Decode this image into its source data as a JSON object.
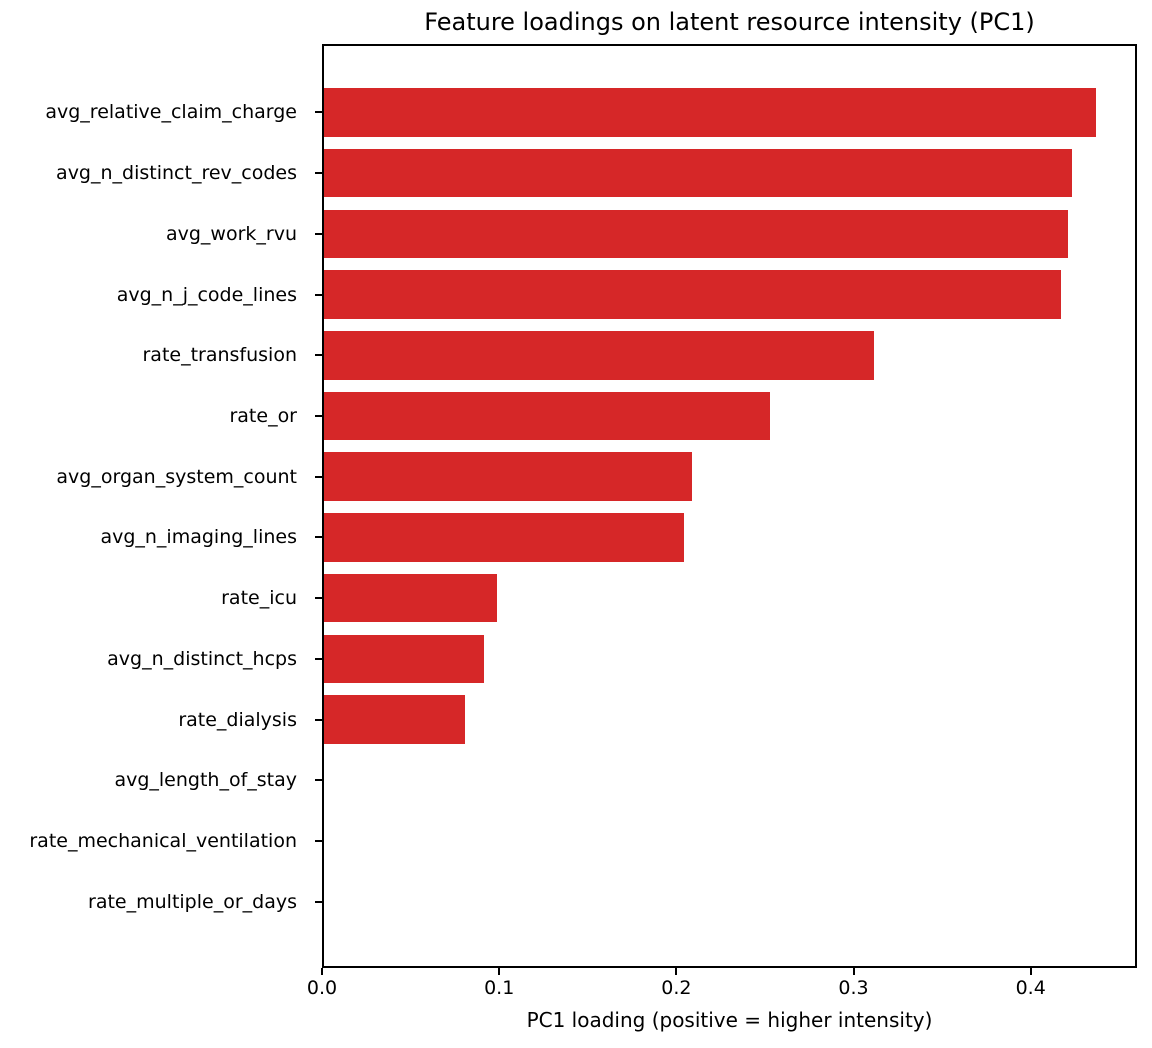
{
  "figure": {
    "background": "#ffffff",
    "axis_color": "#000000"
  },
  "chart_data": {
    "type": "bar",
    "orientation": "horizontal",
    "title": "Feature loadings on latent resource intensity (PC1)",
    "xlabel": "PC1 loading (positive = higher intensity)",
    "ylabel": "",
    "categories": [
      "avg_relative_claim_charge",
      "avg_n_distinct_rev_codes",
      "avg_work_rvu",
      "avg_n_j_code_lines",
      "rate_transfusion",
      "rate_or",
      "avg_organ_system_count",
      "avg_n_imaging_lines",
      "rate_icu",
      "avg_n_distinct_hcps",
      "rate_dialysis",
      "avg_length_of_stay",
      "rate_mechanical_ventilation",
      "rate_multiple_or_days"
    ],
    "values": [
      0.438,
      0.424,
      0.422,
      0.418,
      0.312,
      0.253,
      0.209,
      0.204,
      0.098,
      0.091,
      0.08,
      0.0,
      0.0,
      0.0
    ],
    "xlim": [
      0,
      0.46
    ],
    "xticks": [
      0.0,
      0.1,
      0.2,
      0.3,
      0.4
    ],
    "xtick_labels": [
      "0.0",
      "0.1",
      "0.2",
      "0.3",
      "0.4"
    ],
    "bar_color": "#d62728",
    "grid": false,
    "legend": "none"
  }
}
